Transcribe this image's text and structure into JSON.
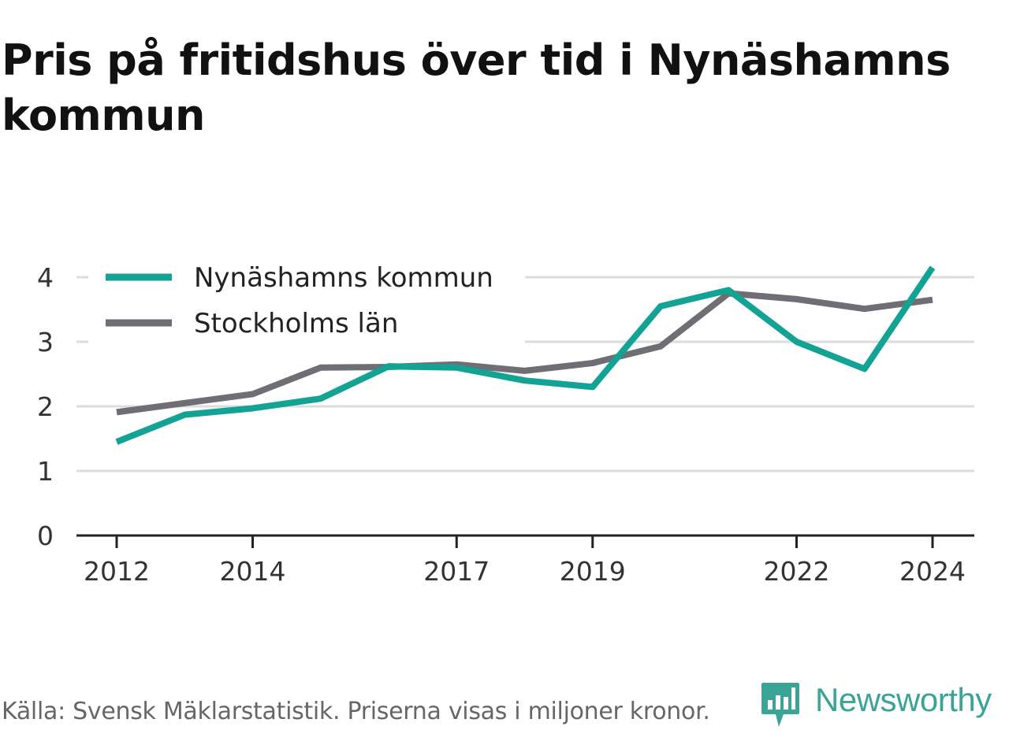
{
  "title": "Pris på fritidshus över tid i Nynäshamns kommun",
  "source_note": "Källa: Svensk Mäklarstatistik. Priserna visas i miljoner kronor.",
  "brand": "Newsworthy",
  "colors": {
    "nynashamn": "#12a394",
    "stockholm": "#6f6e74",
    "grid": "#dddddd",
    "axis": "#222222",
    "brand": "#3aa597"
  },
  "chart_data": {
    "type": "line",
    "x": [
      2012,
      2013,
      2014,
      2015,
      2016,
      2017,
      2018,
      2019,
      2020,
      2021,
      2022,
      2023,
      2024
    ],
    "x_ticks": [
      "2012",
      "2014",
      "2017",
      "2019",
      "2022",
      "2024"
    ],
    "y_ticks": [
      "0",
      "1",
      "2",
      "3",
      "4"
    ],
    "ylim": [
      0,
      4.2
    ],
    "grid": true,
    "legend_position": "top-left",
    "series": [
      {
        "name": "Nynäshamns kommun",
        "color": "#12a394",
        "values": [
          1.45,
          1.87,
          1.97,
          2.12,
          2.62,
          2.6,
          2.4,
          2.3,
          3.55,
          3.8,
          3.0,
          2.58,
          4.15
        ]
      },
      {
        "name": "Stockholms län",
        "color": "#6f6e74",
        "values": [
          1.91,
          2.05,
          2.19,
          2.6,
          2.61,
          2.65,
          2.55,
          2.67,
          2.93,
          3.75,
          3.66,
          3.51,
          3.65
        ]
      }
    ]
  }
}
